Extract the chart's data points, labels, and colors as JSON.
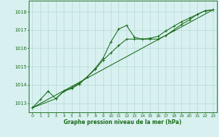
{
  "bg_color": "#d8f0f0",
  "grid_color": "#b8ddd8",
  "line_color": "#1a6b1a",
  "xlabel": "Graphe pression niveau de la mer (hPa)",
  "xlim": [
    -0.5,
    23.5
  ],
  "ylim": [
    1012.5,
    1018.6
  ],
  "yticks": [
    1013,
    1014,
    1015,
    1016,
    1017,
    1018
  ],
  "xticks": [
    0,
    1,
    2,
    3,
    4,
    5,
    6,
    7,
    8,
    9,
    10,
    11,
    12,
    13,
    14,
    15,
    16,
    17,
    18,
    19,
    20,
    21,
    22,
    23
  ],
  "series1": [
    [
      0,
      1012.75
    ],
    [
      1,
      1013.2
    ],
    [
      2,
      1013.65
    ],
    [
      3,
      1013.25
    ],
    [
      4,
      1013.65
    ],
    [
      5,
      1013.8
    ],
    [
      6,
      1014.05
    ],
    [
      7,
      1014.45
    ],
    [
      8,
      1014.9
    ],
    [
      9,
      1015.45
    ],
    [
      10,
      1016.35
    ],
    [
      11,
      1017.05
    ],
    [
      12,
      1017.25
    ],
    [
      13,
      1016.6
    ],
    [
      14,
      1016.5
    ],
    [
      15,
      1016.5
    ],
    [
      16,
      1016.5
    ],
    [
      17,
      1016.7
    ],
    [
      18,
      1017.0
    ],
    [
      19,
      1017.3
    ],
    [
      20,
      1017.55
    ],
    [
      21,
      1017.85
    ],
    [
      22,
      1018.05
    ],
    [
      23,
      1018.1
    ]
  ],
  "series2": [
    [
      0,
      1012.75
    ],
    [
      3,
      1013.25
    ],
    [
      4,
      1013.65
    ],
    [
      5,
      1013.85
    ],
    [
      6,
      1014.1
    ],
    [
      7,
      1014.45
    ],
    [
      8,
      1014.85
    ],
    [
      9,
      1015.35
    ],
    [
      10,
      1015.75
    ],
    [
      11,
      1016.15
    ],
    [
      12,
      1016.5
    ],
    [
      13,
      1016.5
    ],
    [
      14,
      1016.5
    ],
    [
      15,
      1016.55
    ],
    [
      16,
      1016.65
    ],
    [
      17,
      1016.95
    ],
    [
      18,
      1017.2
    ],
    [
      19,
      1017.45
    ],
    [
      20,
      1017.65
    ],
    [
      21,
      1017.85
    ],
    [
      22,
      1018.05
    ],
    [
      23,
      1018.1
    ]
  ],
  "series3": [
    [
      0,
      1012.75
    ],
    [
      23,
      1018.1
    ]
  ]
}
